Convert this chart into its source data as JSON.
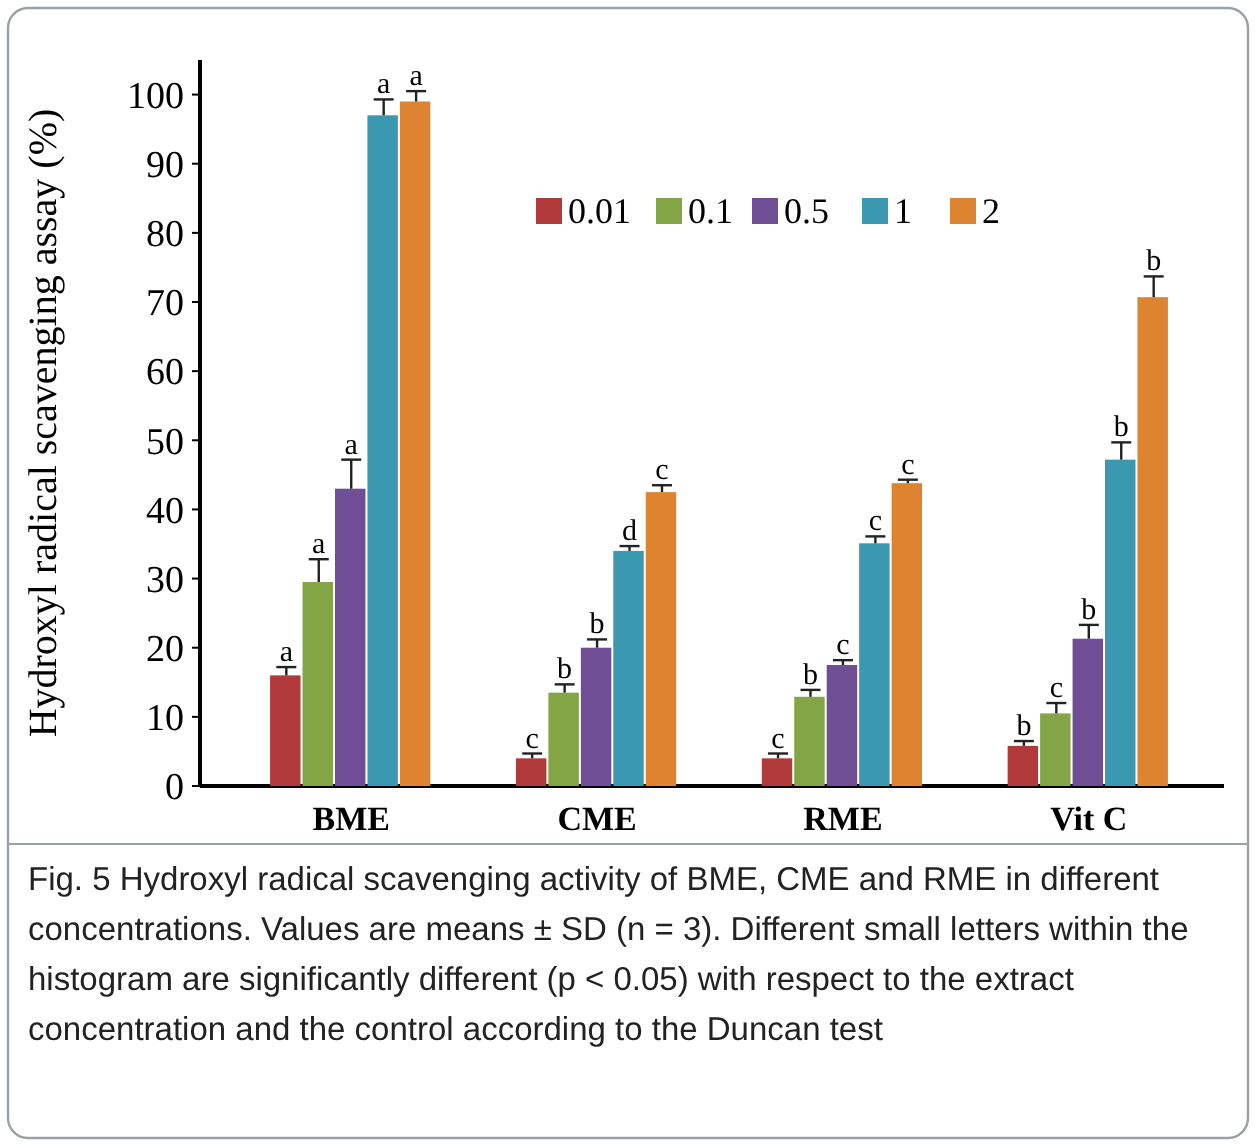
{
  "chart_data": {
    "type": "bar",
    "ylabel": "Hydroxyl radical scavenging assay (%)",
    "categories": [
      "BME",
      "CME",
      "RME",
      "Vit C"
    ],
    "series": [
      {
        "name": "0.01",
        "color": "#b03a3a",
        "values": [
          16,
          4,
          4,
          5.8
        ],
        "errors": [
          1.2,
          0.7,
          0.7,
          0.7
        ],
        "value_labels": [
          "a",
          "c",
          "c",
          "b"
        ]
      },
      {
        "name": "0.1",
        "color": "#84a546",
        "values": [
          29.5,
          13.5,
          12.9,
          10.5
        ],
        "errors": [
          3.3,
          1.2,
          1,
          1.5
        ],
        "value_labels": [
          "a",
          "b",
          "b",
          "c"
        ]
      },
      {
        "name": "0.5",
        "color": "#6f4e96",
        "values": [
          43,
          20,
          17.5,
          21.3
        ],
        "errors": [
          4.2,
          1.2,
          0.7,
          2
        ],
        "value_labels": [
          "a",
          "b",
          "c",
          "b"
        ]
      },
      {
        "name": "1",
        "color": "#3a98b0",
        "values": [
          97,
          34,
          35.1,
          47.2
        ],
        "errors": [
          2.3,
          0.7,
          1,
          2.5
        ],
        "value_labels": [
          "a",
          "d",
          "c",
          "b"
        ]
      },
      {
        "name": "2",
        "color": "#de8431",
        "values": [
          99,
          42.5,
          43.8,
          70.7
        ],
        "errors": [
          1.5,
          1,
          0.5,
          3
        ],
        "value_labels": [
          "a",
          "c",
          "c",
          "b"
        ]
      }
    ],
    "ylim": [
      0,
      105
    ],
    "yticks": [
      0,
      10,
      20,
      30,
      40,
      50,
      60,
      70,
      80,
      90,
      100
    ],
    "grid": false,
    "legend": "top",
    "annotations": [
      "Fig. 5 Hydroxyl radical scavenging activity of BME, CME and RME in different concentrations. Values are means ± SD (n = 3). Different small letters within the histogram are significantly different (p < 0.05) with respect to the extract concentration and the control according to the Duncan test"
    ]
  }
}
